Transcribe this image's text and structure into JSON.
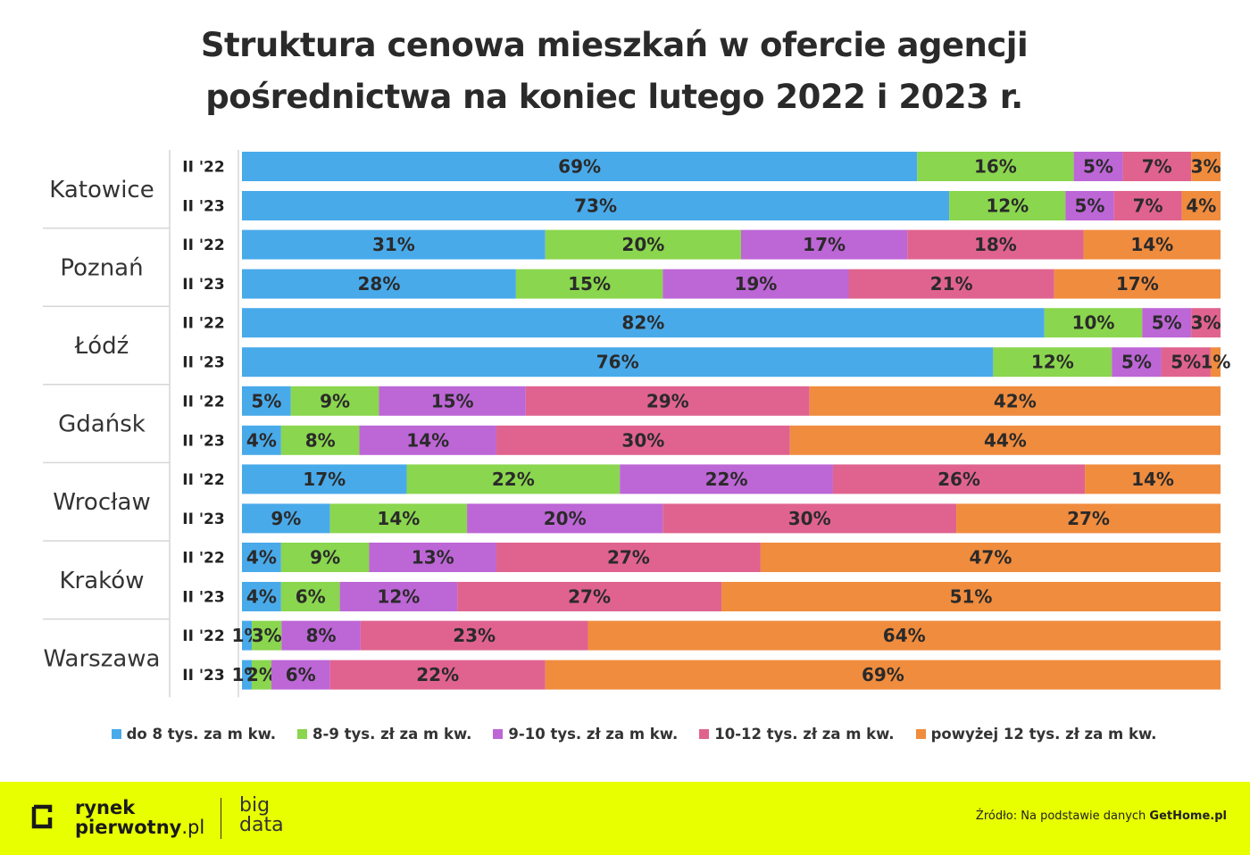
{
  "title": {
    "line1": "Struktura cenowa mieszkań w ofercie agencji",
    "line2": "pośrednictwa na koniec lutego 2022 i 2023 r."
  },
  "legend": [
    {
      "label": "do 8 tys. za m kw.",
      "color": "#49aaea"
    },
    {
      "label": "8-9 tys. zł za m kw.",
      "color": "#8ad64e"
    },
    {
      "label": "9-10 tys. zł za m kw.",
      "color": "#bd66d6"
    },
    {
      "label": "10-12 tys. zł za m kw.",
      "color": "#e0638f"
    },
    {
      "label": "powyżej 12 tys. zł za m kw.",
      "color": "#f08c3e"
    }
  ],
  "chart_data": {
    "type": "bar",
    "orientation": "horizontal",
    "stacked": true,
    "normalized": true,
    "series_names": [
      "do 8 tys. za m kw.",
      "8-9 tys. zł za m kw.",
      "9-10 tys. zł za m kw.",
      "10-12 tys. zł za m kw.",
      "powyżej 12 tys. zł za m kw."
    ],
    "colors": [
      "#49aaea",
      "#8ad64e",
      "#bd66d6",
      "#e0638f",
      "#f08c3e"
    ],
    "groups": [
      {
        "city": "Katowice",
        "rows": [
          {
            "label": "II '22",
            "values": [
              69,
              16,
              5,
              7,
              3
            ]
          },
          {
            "label": "II '23",
            "values": [
              73,
              12,
              5,
              7,
              4
            ]
          }
        ]
      },
      {
        "city": "Poznań",
        "rows": [
          {
            "label": "II '22",
            "values": [
              31,
              20,
              17,
              18,
              14
            ]
          },
          {
            "label": "II '23",
            "values": [
              28,
              15,
              19,
              21,
              17
            ]
          }
        ]
      },
      {
        "city": "Łódź",
        "rows": [
          {
            "label": "II '22",
            "values": [
              82,
              10,
              5,
              3,
              0
            ]
          },
          {
            "label": "II '23",
            "values": [
              76,
              12,
              5,
              5,
              1
            ]
          }
        ]
      },
      {
        "city": "Gdańsk",
        "rows": [
          {
            "label": "II '22",
            "values": [
              5,
              9,
              15,
              29,
              42
            ]
          },
          {
            "label": "II '23",
            "values": [
              4,
              8,
              14,
              30,
              44
            ]
          }
        ]
      },
      {
        "city": "Wrocław",
        "rows": [
          {
            "label": "II '22",
            "values": [
              17,
              22,
              22,
              26,
              14
            ]
          },
          {
            "label": "II '23",
            "values": [
              9,
              14,
              20,
              30,
              27
            ]
          }
        ]
      },
      {
        "city": "Kraków",
        "rows": [
          {
            "label": "II '22",
            "values": [
              4,
              9,
              13,
              27,
              47
            ]
          },
          {
            "label": "II '23",
            "values": [
              4,
              6,
              12,
              27,
              51
            ]
          }
        ]
      },
      {
        "city": "Warszawa",
        "rows": [
          {
            "label": "II '22",
            "values": [
              1,
              3,
              8,
              23,
              64
            ]
          },
          {
            "label": "II '23",
            "values": [
              1,
              2,
              6,
              22,
              69
            ]
          }
        ]
      }
    ]
  },
  "footer": {
    "logo_line1": "rynek",
    "logo_line2_bold": "pierwotny",
    "logo_line2_tld": ".pl",
    "logo2_line1": "big",
    "logo2_line2": "data",
    "source_prefix": "Źródło: Na podstawie danych ",
    "source_bold": "GetHome.pl",
    "background_color": "#e8ff00"
  }
}
